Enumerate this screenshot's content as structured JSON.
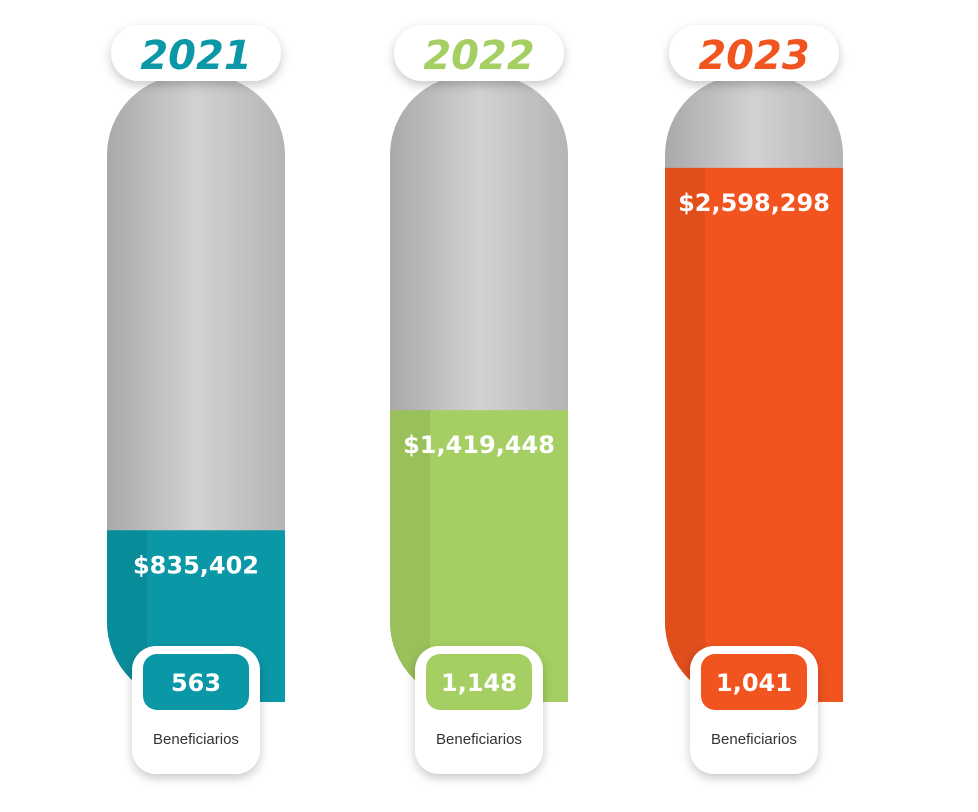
{
  "chart_data": {
    "type": "bar",
    "categories": [
      "2021",
      "2022",
      "2023"
    ],
    "values": [
      835402,
      1419448,
      2598298
    ],
    "value_labels": [
      "$835,402",
      "$1,419,448",
      "$2,598,298"
    ],
    "beneficiaries": [
      563,
      1148,
      1041
    ],
    "beneficiary_labels": [
      "563",
      "1,148",
      "1,041"
    ],
    "caption": "Beneficiarios",
    "ylim": [
      0,
      3050000
    ],
    "colors": {
      "2021": "#0a97a6",
      "2022": "#a5cf62",
      "2023": "#f1541f",
      "track": "#c8c8c8"
    }
  }
}
